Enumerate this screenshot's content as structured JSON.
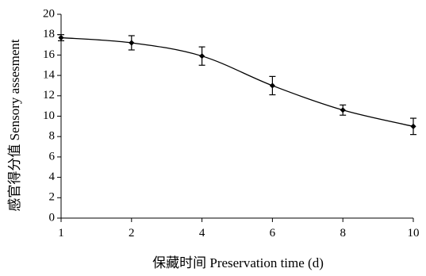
{
  "chart_data": {
    "type": "line",
    "title": "",
    "xlabel": "保藏时间 Preservation time (d)",
    "ylabel": "感官得分值 Sensory assesment",
    "categories": [
      "1",
      "2",
      "4",
      "6",
      "8",
      "10"
    ],
    "ylim": [
      0,
      20
    ],
    "yticks": [
      0,
      2,
      4,
      6,
      8,
      10,
      12,
      14,
      16,
      18,
      20
    ],
    "series": [
      {
        "values": [
          17.7,
          17.2,
          15.9,
          13.0,
          10.6,
          9.0
        ],
        "errors": [
          0.3,
          0.7,
          0.9,
          0.9,
          0.5,
          0.8
        ]
      }
    ],
    "grid": false,
    "legend": "none",
    "colors": {
      "line": "#000000"
    }
  }
}
